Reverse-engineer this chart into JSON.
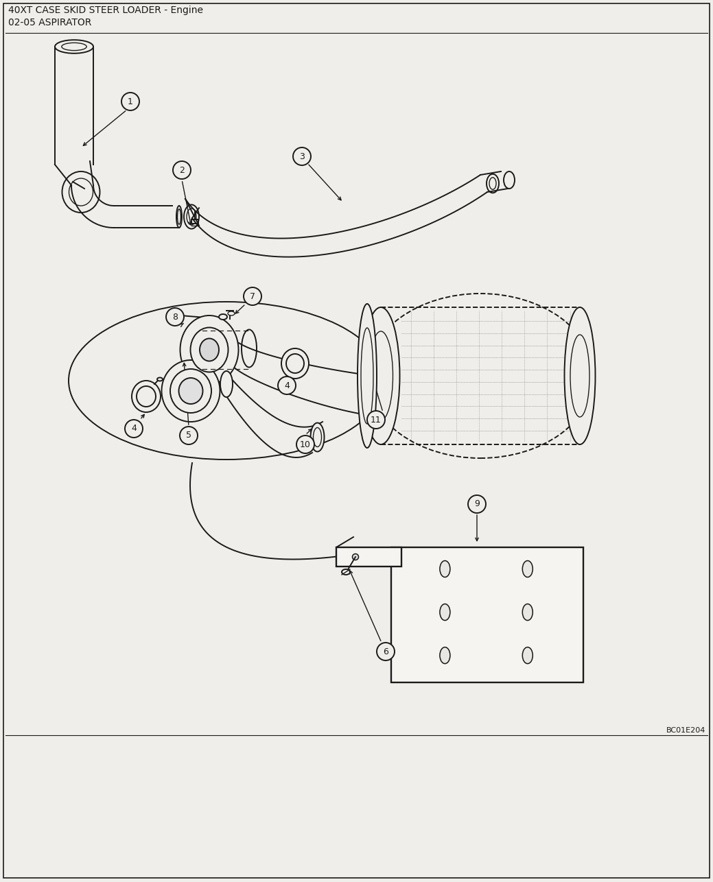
{
  "title_line1": "40XT CASE SKID STEER LOADER - Engine",
  "title_line2": "02-05 ASPIRATOR",
  "diagram_code": "BC01E204",
  "bg_color": "#f0eeea",
  "line_color": "#1a1a1a",
  "text_color": "#1a1a1a",
  "fig_width": 10.39,
  "fig_height": 12.86
}
